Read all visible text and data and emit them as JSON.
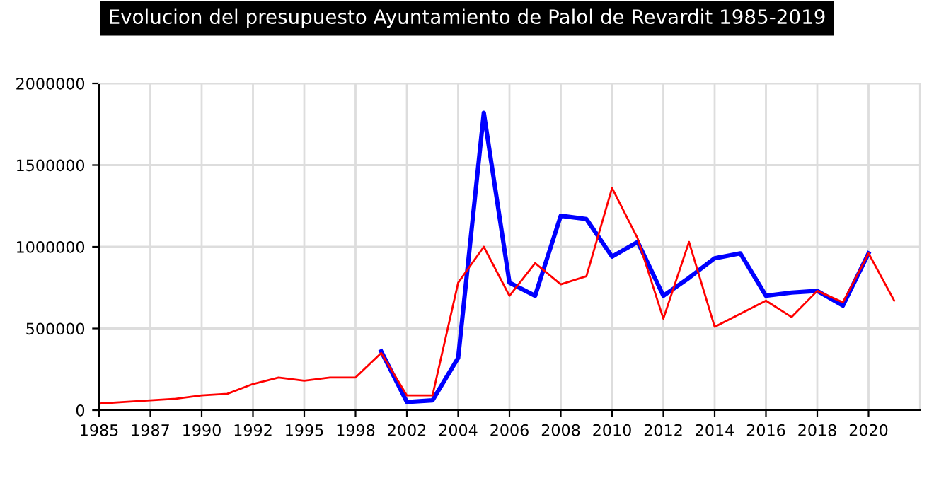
{
  "chart_data": {
    "type": "line",
    "title": "Evolucion del presupuesto Ayuntamiento de Palol de Revardit 1985-2019",
    "categories": [
      "1985",
      null,
      "1987",
      null,
      "1990",
      null,
      "1992",
      null,
      "1995",
      null,
      "1998",
      null,
      "2002",
      null,
      "2004",
      null,
      "2006",
      null,
      "2008",
      null,
      "2010",
      null,
      "2012",
      null,
      "2014",
      null,
      "2016",
      null,
      "2018",
      null,
      "2020",
      null
    ],
    "series": [
      {
        "color": "#0000ff",
        "values": [
          null,
          null,
          null,
          null,
          null,
          null,
          null,
          null,
          null,
          null,
          null,
          360000,
          50000,
          60000,
          320000,
          1820000,
          780000,
          700000,
          1190000,
          1170000,
          940000,
          1030000,
          700000,
          810000,
          930000,
          960000,
          700000,
          720000,
          730000,
          640000,
          960000,
          null
        ]
      },
      {
        "color": "#ff0000",
        "values": [
          40000,
          50000,
          60000,
          70000,
          90000,
          100000,
          160000,
          200000,
          180000,
          200000,
          200000,
          350000,
          90000,
          90000,
          780000,
          1000000,
          700000,
          900000,
          770000,
          820000,
          1360000,
          1050000,
          560000,
          1030000,
          510000,
          590000,
          670000,
          570000,
          730000,
          660000,
          960000,
          670000
        ]
      }
    ],
    "ylim": [
      0,
      2000000
    ],
    "yticks": [
      0,
      500000,
      1000000,
      1500000,
      2000000
    ],
    "grid": true,
    "legend": false
  }
}
